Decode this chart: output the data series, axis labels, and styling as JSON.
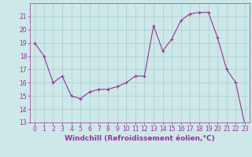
{
  "x": [
    0,
    1,
    2,
    3,
    4,
    5,
    6,
    7,
    8,
    9,
    10,
    11,
    12,
    13,
    14,
    15,
    16,
    17,
    18,
    19,
    20,
    21,
    22,
    23
  ],
  "y": [
    19,
    18,
    16,
    16.5,
    15,
    14.8,
    15.3,
    15.5,
    15.5,
    15.7,
    16,
    16.5,
    16.5,
    20.3,
    18.4,
    19.3,
    20.7,
    21.2,
    21.3,
    21.3,
    19.4,
    17,
    16,
    12.8
  ],
  "line_color": "#993399",
  "marker": "+",
  "bg_color": "#cce8e8",
  "grid_color": "#aacccc",
  "xlabel": "Windchill (Refroidissement éolien,°C)",
  "xlabel_color": "#993399",
  "tick_color": "#993399",
  "spine_color": "#993399",
  "ylim": [
    13,
    22
  ],
  "xlim": [
    -0.5,
    23.5
  ],
  "yticks": [
    13,
    14,
    15,
    16,
    17,
    18,
    19,
    20,
    21
  ],
  "xticks": [
    0,
    1,
    2,
    3,
    4,
    5,
    6,
    7,
    8,
    9,
    10,
    11,
    12,
    13,
    14,
    15,
    16,
    17,
    18,
    19,
    20,
    21,
    22,
    23
  ],
  "tick_fontsize": 5.5,
  "xlabel_fontsize": 6.5
}
